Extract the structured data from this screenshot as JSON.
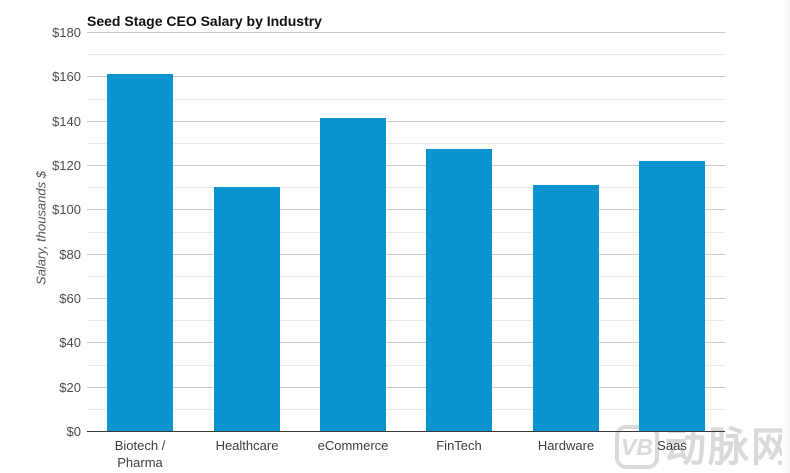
{
  "page": {
    "background": "#ffffff"
  },
  "chart_data": {
    "type": "bar",
    "title": "Seed Stage CEO Salary by Industry",
    "xlabel": "",
    "ylabel": "Salary, thousands $",
    "categories": [
      "Biotech /\nPharma",
      "Healthcare",
      "eCommerce",
      "FinTech",
      "Hardware",
      "Saas"
    ],
    "values": [
      161,
      110,
      141,
      127,
      111,
      122
    ],
    "ylim": [
      0,
      180
    ],
    "ytick_major_step": 20,
    "ytick_minor_step": 10,
    "ytick_prefix": "$",
    "grid": "horizontal, major and minor, no vertical grid",
    "legend": "none",
    "colors": {
      "bar": "#0994cf",
      "major_grid": "#c9c9c9",
      "minor_grid": "#e9e9e9",
      "axis_line": "#383838",
      "y_tick_label": "#4d4d4d",
      "x_tick_label": "#3d3d3d",
      "title": "#101010"
    }
  },
  "watermark": {
    "logo_text": "VB",
    "text": "动脉网",
    "color": "#d9d9d9"
  }
}
